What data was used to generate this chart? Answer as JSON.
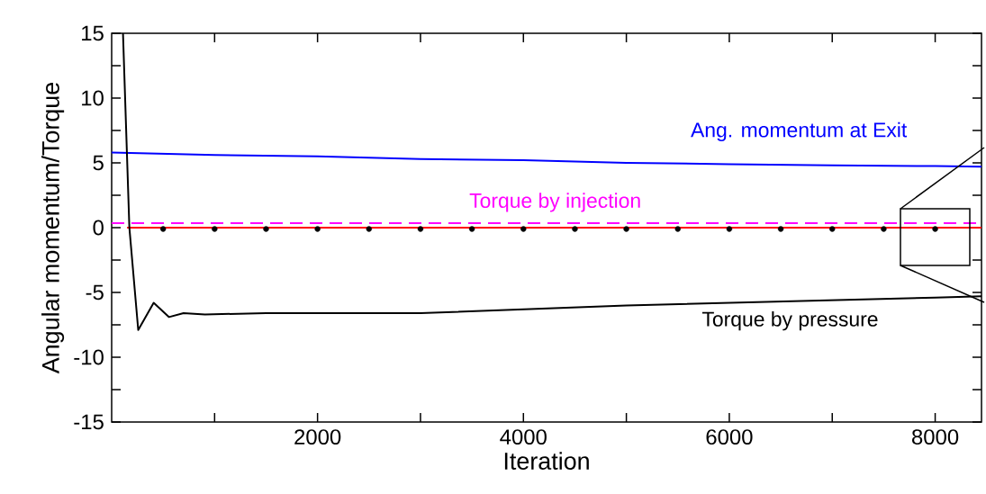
{
  "chart_data": {
    "type": "line",
    "xlabel": "Iteration",
    "ylabel": "Angular momentum/Torque",
    "xlim": [
      0,
      8450
    ],
    "ylim": [
      -15,
      15
    ],
    "xticks": [
      {
        "value": 1000,
        "label": null
      },
      2000,
      {
        "value": 3000,
        "label": null
      },
      4000,
      {
        "value": 5000,
        "label": null
      },
      6000,
      {
        "value": 7000,
        "label": null
      },
      8000
    ],
    "yticks": [
      -15,
      {
        "value": -12.5,
        "label": null
      },
      -10,
      {
        "value": -7.5,
        "label": null
      },
      -5,
      {
        "value": -2.5,
        "label": null
      },
      0,
      {
        "value": 2.5,
        "label": null
      },
      5,
      {
        "value": 7.5,
        "label": null
      },
      10,
      {
        "value": 12.5,
        "label": null
      },
      15
    ],
    "grid": false,
    "series": [
      {
        "name": "Ang. momentum at Exit",
        "color": "#0000ff",
        "line_style": "solid",
        "marker": "none",
        "x": [
          0,
          1000,
          2000,
          3000,
          4000,
          5000,
          6000,
          7000,
          8000,
          8450
        ],
        "values": [
          5.8,
          5.6,
          5.5,
          5.3,
          5.2,
          5.0,
          4.9,
          4.8,
          4.75,
          4.7
        ]
      },
      {
        "name": "Torque by injection",
        "color": "#ff00ff",
        "line_style": "dashed",
        "marker": "none",
        "x": [
          0,
          8450
        ],
        "values": [
          0.35,
          0.35
        ]
      },
      {
        "color": "#ff0000",
        "line_style": "solid",
        "marker": "none",
        "x": [
          150,
          8450
        ],
        "values": [
          0,
          0
        ]
      },
      {
        "type": "scatter",
        "color": "#000000",
        "marker": "circle",
        "x": [
          500,
          1000,
          1500,
          2000,
          2500,
          3000,
          3500,
          4000,
          4500,
          5000,
          5500,
          6000,
          6500,
          7000,
          7500,
          8000
        ],
        "values": [
          -0.1,
          -0.1,
          -0.1,
          -0.1,
          -0.1,
          -0.1,
          -0.1,
          -0.1,
          -0.1,
          -0.1,
          -0.1,
          -0.1,
          -0.1,
          -0.1,
          -0.1,
          -0.1
        ]
      },
      {
        "name": "Torque by pressure",
        "color": "#000000",
        "line_style": "solid",
        "marker": "none",
        "x": [
          110,
          172,
          258,
          408,
          556,
          698,
          906,
          1500,
          2000,
          3000,
          4000,
          5000,
          6000,
          7000,
          8000,
          8450
        ],
        "values": [
          15,
          0,
          -7.9,
          -5.8,
          -6.9,
          -6.6,
          -6.7,
          -6.6,
          -6.6,
          -6.6,
          -6.3,
          -6.0,
          -5.8,
          -5.6,
          -5.4,
          -5.3
        ]
      }
    ]
  }
}
